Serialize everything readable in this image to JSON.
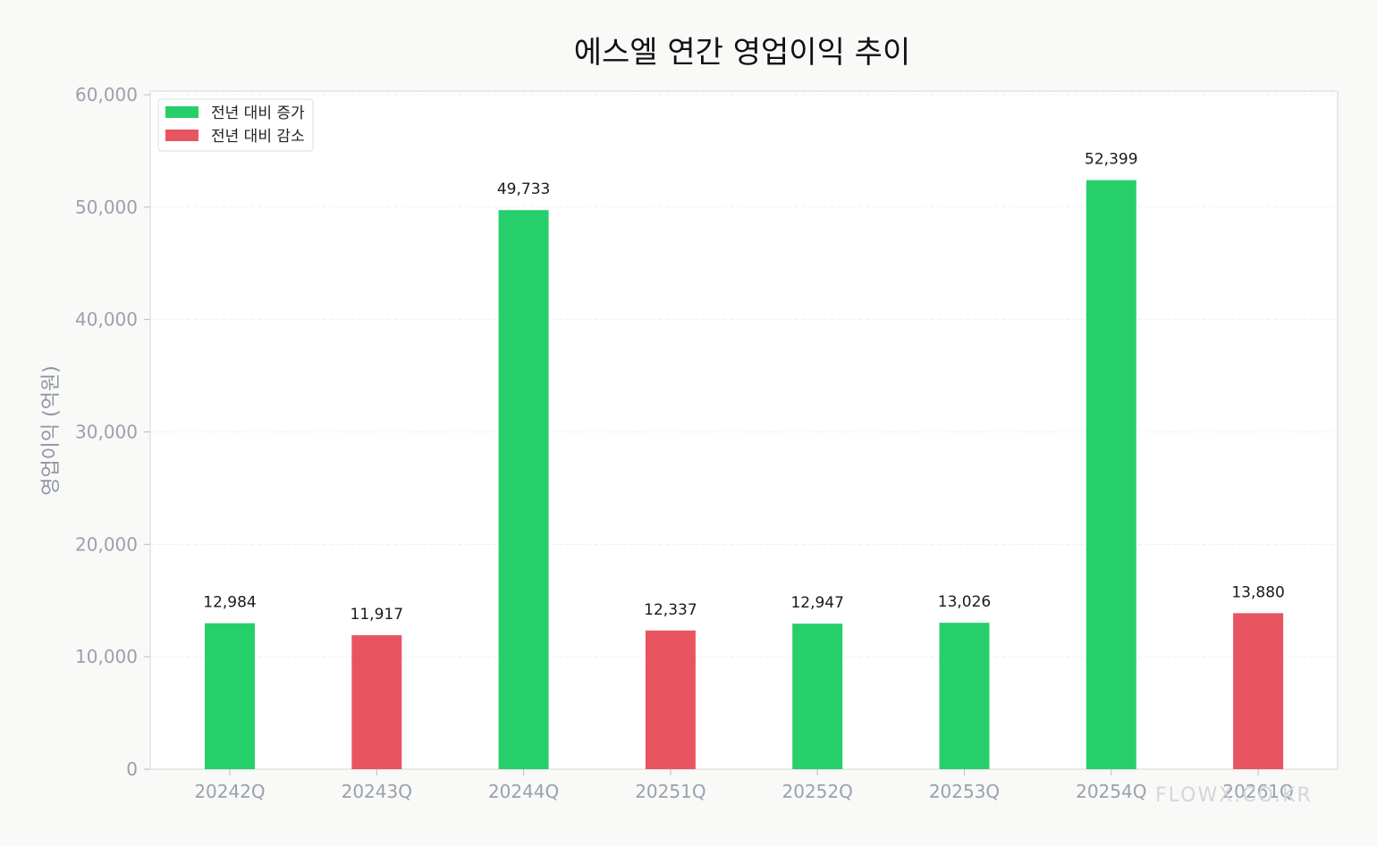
{
  "chart_data": {
    "type": "bar",
    "title": "에스엘 연간 영업이익 추이",
    "ylabel": "영업이익 (억원)",
    "xlabel": "",
    "categories": [
      "20242Q",
      "20243Q",
      "20244Q",
      "20251Q",
      "20252Q",
      "20253Q",
      "20254Q",
      "20261Q"
    ],
    "values": [
      12984,
      11917,
      49733,
      12337,
      12947,
      13026,
      52399,
      13880
    ],
    "value_labels": [
      "12,984",
      "11,917",
      "49,733",
      "12,337",
      "12,947",
      "13,026",
      "52,399",
      "13,880"
    ],
    "trend": [
      "increase",
      "decrease",
      "increase",
      "decrease",
      "increase",
      "increase",
      "increase",
      "decrease"
    ],
    "ylim": [
      0,
      60000
    ],
    "yticks": [
      0,
      10000,
      20000,
      30000,
      40000,
      50000,
      60000
    ],
    "ytick_labels": [
      "0",
      "10,000",
      "20,000",
      "30,000",
      "40,000",
      "50,000",
      "60,000"
    ],
    "grid": true,
    "legend": {
      "placement": "top-left",
      "entries": [
        {
          "key": "increase",
          "label": "전년 대비 증가",
          "color": "#27cf6b"
        },
        {
          "key": "decrease",
          "label": "전년 대비 감소",
          "color": "#e85561"
        }
      ]
    }
  },
  "watermark": "FLOWX.CO.KR"
}
